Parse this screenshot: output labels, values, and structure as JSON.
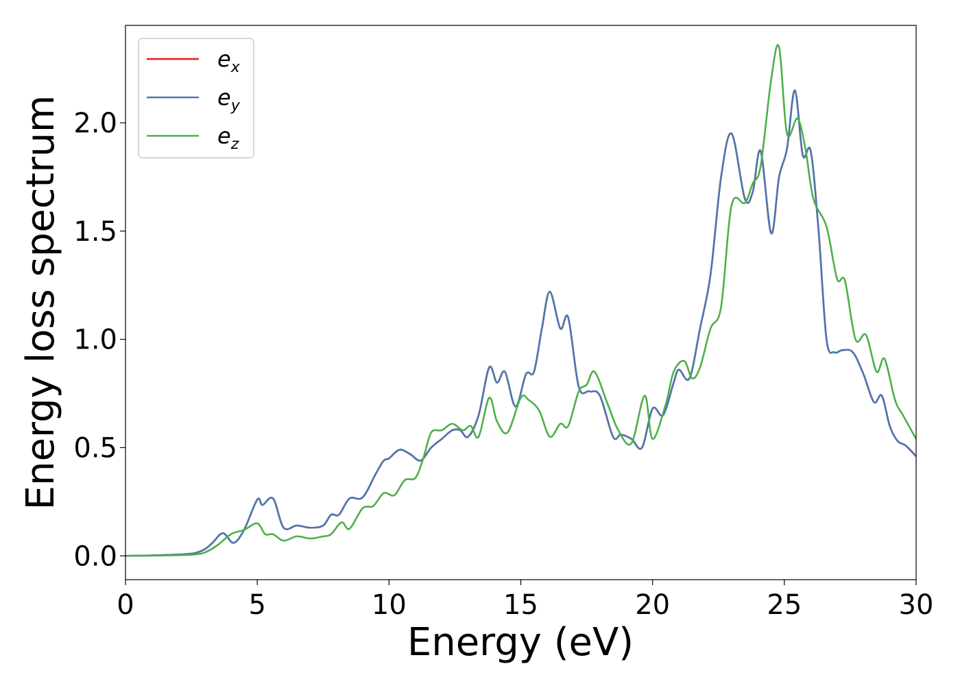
{
  "chart_data": {
    "type": "line",
    "title": "",
    "xlabel": "Energy (eV)",
    "ylabel": "Energy loss spectrum",
    "xlim": [
      0,
      30
    ],
    "ylim": [
      -0.11,
      2.45
    ],
    "x_ticks": [
      0,
      5,
      10,
      15,
      20,
      25,
      30
    ],
    "y_ticks": [
      0.0,
      0.5,
      1.0,
      1.5,
      2.0
    ],
    "x_tick_labels": [
      "0",
      "5",
      "10",
      "15",
      "20",
      "25",
      "30"
    ],
    "y_tick_labels": [
      "0.0",
      "0.5",
      "1.0",
      "1.5",
      "2.0"
    ],
    "grid": false,
    "legend_position": "top-left",
    "series": [
      {
        "name": "e",
        "subscript": "x",
        "color": "#e41a1c",
        "points": [
          [
            0,
            0
          ],
          [
            1,
            0.002
          ],
          [
            2,
            0.006
          ],
          [
            2.6,
            0.012
          ],
          [
            3,
            0.03
          ],
          [
            3.3,
            0.06
          ],
          [
            3.7,
            0.105
          ],
          [
            4.1,
            0.06
          ],
          [
            4.5,
            0.12
          ],
          [
            5,
            0.26
          ],
          [
            5.2,
            0.235
          ],
          [
            5.6,
            0.265
          ],
          [
            6,
            0.13
          ],
          [
            6.5,
            0.14
          ],
          [
            7,
            0.13
          ],
          [
            7.5,
            0.14
          ],
          [
            7.8,
            0.19
          ],
          [
            8.1,
            0.19
          ],
          [
            8.5,
            0.265
          ],
          [
            9,
            0.27
          ],
          [
            9.5,
            0.38
          ],
          [
            9.8,
            0.44
          ],
          [
            10,
            0.45
          ],
          [
            10.4,
            0.49
          ],
          [
            10.8,
            0.47
          ],
          [
            11.2,
            0.44
          ],
          [
            11.6,
            0.5
          ],
          [
            12,
            0.54
          ],
          [
            12.4,
            0.58
          ],
          [
            12.7,
            0.58
          ],
          [
            13,
            0.55
          ],
          [
            13.4,
            0.65
          ],
          [
            13.8,
            0.87
          ],
          [
            14.1,
            0.8
          ],
          [
            14.4,
            0.85
          ],
          [
            14.8,
            0.69
          ],
          [
            15.2,
            0.84
          ],
          [
            15.5,
            0.85
          ],
          [
            15.8,
            1.05
          ],
          [
            16.1,
            1.22
          ],
          [
            16.5,
            1.05
          ],
          [
            16.8,
            1.1
          ],
          [
            17.2,
            0.78
          ],
          [
            17.6,
            0.76
          ],
          [
            18,
            0.74
          ],
          [
            18.5,
            0.55
          ],
          [
            18.8,
            0.56
          ],
          [
            19.2,
            0.54
          ],
          [
            19.6,
            0.5
          ],
          [
            20,
            0.68
          ],
          [
            20.4,
            0.65
          ],
          [
            20.8,
            0.8
          ],
          [
            21,
            0.86
          ],
          [
            21.4,
            0.82
          ],
          [
            21.8,
            1.05
          ],
          [
            22.2,
            1.3
          ],
          [
            22.6,
            1.75
          ],
          [
            23,
            1.95
          ],
          [
            23.5,
            1.65
          ],
          [
            23.8,
            1.68
          ],
          [
            24.1,
            1.87
          ],
          [
            24.5,
            1.49
          ],
          [
            24.8,
            1.75
          ],
          [
            25.1,
            1.88
          ],
          [
            25.4,
            2.15
          ],
          [
            25.7,
            1.85
          ],
          [
            26,
            1.87
          ],
          [
            26.3,
            1.5
          ],
          [
            26.6,
            1.0
          ],
          [
            26.9,
            0.94
          ],
          [
            27.2,
            0.95
          ],
          [
            27.6,
            0.94
          ],
          [
            28,
            0.84
          ],
          [
            28.4,
            0.71
          ],
          [
            28.7,
            0.74
          ],
          [
            29,
            0.6
          ],
          [
            29.3,
            0.53
          ],
          [
            29.6,
            0.51
          ],
          [
            30,
            0.46
          ]
        ]
      },
      {
        "name": "e",
        "subscript": "y",
        "color": "#4a78b0",
        "points": [
          [
            0,
            0
          ],
          [
            1,
            0.002
          ],
          [
            2,
            0.006
          ],
          [
            2.6,
            0.012
          ],
          [
            3,
            0.03
          ],
          [
            3.3,
            0.06
          ],
          [
            3.7,
            0.105
          ],
          [
            4.1,
            0.06
          ],
          [
            4.5,
            0.12
          ],
          [
            5,
            0.26
          ],
          [
            5.2,
            0.235
          ],
          [
            5.6,
            0.265
          ],
          [
            6,
            0.13
          ],
          [
            6.5,
            0.14
          ],
          [
            7,
            0.13
          ],
          [
            7.5,
            0.14
          ],
          [
            7.8,
            0.19
          ],
          [
            8.1,
            0.19
          ],
          [
            8.5,
            0.265
          ],
          [
            9,
            0.27
          ],
          [
            9.5,
            0.38
          ],
          [
            9.8,
            0.44
          ],
          [
            10,
            0.45
          ],
          [
            10.4,
            0.49
          ],
          [
            10.8,
            0.47
          ],
          [
            11.2,
            0.44
          ],
          [
            11.6,
            0.5
          ],
          [
            12,
            0.54
          ],
          [
            12.4,
            0.58
          ],
          [
            12.7,
            0.58
          ],
          [
            13,
            0.55
          ],
          [
            13.4,
            0.65
          ],
          [
            13.8,
            0.87
          ],
          [
            14.1,
            0.8
          ],
          [
            14.4,
            0.85
          ],
          [
            14.8,
            0.69
          ],
          [
            15.2,
            0.84
          ],
          [
            15.5,
            0.85
          ],
          [
            15.8,
            1.05
          ],
          [
            16.1,
            1.22
          ],
          [
            16.5,
            1.05
          ],
          [
            16.8,
            1.1
          ],
          [
            17.2,
            0.78
          ],
          [
            17.6,
            0.76
          ],
          [
            18,
            0.74
          ],
          [
            18.5,
            0.55
          ],
          [
            18.8,
            0.56
          ],
          [
            19.2,
            0.54
          ],
          [
            19.6,
            0.5
          ],
          [
            20,
            0.68
          ],
          [
            20.4,
            0.65
          ],
          [
            20.8,
            0.8
          ],
          [
            21,
            0.86
          ],
          [
            21.4,
            0.82
          ],
          [
            21.8,
            1.05
          ],
          [
            22.2,
            1.3
          ],
          [
            22.6,
            1.75
          ],
          [
            23,
            1.95
          ],
          [
            23.5,
            1.65
          ],
          [
            23.8,
            1.68
          ],
          [
            24.1,
            1.87
          ],
          [
            24.5,
            1.49
          ],
          [
            24.8,
            1.75
          ],
          [
            25.1,
            1.88
          ],
          [
            25.4,
            2.15
          ],
          [
            25.7,
            1.85
          ],
          [
            26,
            1.87
          ],
          [
            26.3,
            1.5
          ],
          [
            26.6,
            1.0
          ],
          [
            26.9,
            0.94
          ],
          [
            27.2,
            0.95
          ],
          [
            27.6,
            0.94
          ],
          [
            28,
            0.84
          ],
          [
            28.4,
            0.71
          ],
          [
            28.7,
            0.74
          ],
          [
            29,
            0.6
          ],
          [
            29.3,
            0.53
          ],
          [
            29.6,
            0.51
          ],
          [
            30,
            0.46
          ]
        ]
      },
      {
        "name": "e",
        "subscript": "z",
        "color": "#4daf4a",
        "points": [
          [
            0,
            0
          ],
          [
            1,
            0.001
          ],
          [
            2,
            0.003
          ],
          [
            2.6,
            0.006
          ],
          [
            3,
            0.015
          ],
          [
            3.5,
            0.05
          ],
          [
            4,
            0.1
          ],
          [
            4.5,
            0.12
          ],
          [
            5,
            0.15
          ],
          [
            5.3,
            0.1
          ],
          [
            5.6,
            0.1
          ],
          [
            6,
            0.07
          ],
          [
            6.5,
            0.09
          ],
          [
            7,
            0.08
          ],
          [
            7.5,
            0.09
          ],
          [
            7.8,
            0.1
          ],
          [
            8.2,
            0.155
          ],
          [
            8.5,
            0.125
          ],
          [
            9,
            0.22
          ],
          [
            9.4,
            0.23
          ],
          [
            9.8,
            0.29
          ],
          [
            10.2,
            0.28
          ],
          [
            10.6,
            0.35
          ],
          [
            11,
            0.36
          ],
          [
            11.3,
            0.45
          ],
          [
            11.6,
            0.57
          ],
          [
            12,
            0.58
          ],
          [
            12.4,
            0.61
          ],
          [
            12.8,
            0.58
          ],
          [
            13.1,
            0.6
          ],
          [
            13.4,
            0.55
          ],
          [
            13.8,
            0.73
          ],
          [
            14.1,
            0.62
          ],
          [
            14.5,
            0.57
          ],
          [
            15,
            0.73
          ],
          [
            15.3,
            0.72
          ],
          [
            15.7,
            0.67
          ],
          [
            16.1,
            0.55
          ],
          [
            16.5,
            0.61
          ],
          [
            16.8,
            0.6
          ],
          [
            17.2,
            0.76
          ],
          [
            17.5,
            0.79
          ],
          [
            17.8,
            0.85
          ],
          [
            18.3,
            0.7
          ],
          [
            18.7,
            0.58
          ],
          [
            19.2,
            0.52
          ],
          [
            19.7,
            0.74
          ],
          [
            20,
            0.54
          ],
          [
            20.5,
            0.7
          ],
          [
            20.8,
            0.85
          ],
          [
            21.2,
            0.9
          ],
          [
            21.5,
            0.82
          ],
          [
            21.8,
            0.87
          ],
          [
            22.2,
            1.05
          ],
          [
            22.6,
            1.15
          ],
          [
            23,
            1.62
          ],
          [
            23.5,
            1.63
          ],
          [
            23.8,
            1.72
          ],
          [
            24.1,
            1.8
          ],
          [
            24.5,
            2.2
          ],
          [
            24.8,
            2.35
          ],
          [
            25.1,
            1.95
          ],
          [
            25.5,
            2.02
          ],
          [
            25.8,
            1.88
          ],
          [
            26.1,
            1.65
          ],
          [
            26.6,
            1.52
          ],
          [
            27,
            1.28
          ],
          [
            27.3,
            1.27
          ],
          [
            27.7,
            1.0
          ],
          [
            28.1,
            1.02
          ],
          [
            28.5,
            0.85
          ],
          [
            28.8,
            0.91
          ],
          [
            29.2,
            0.72
          ],
          [
            29.5,
            0.65
          ],
          [
            30,
            0.54
          ]
        ]
      }
    ]
  }
}
